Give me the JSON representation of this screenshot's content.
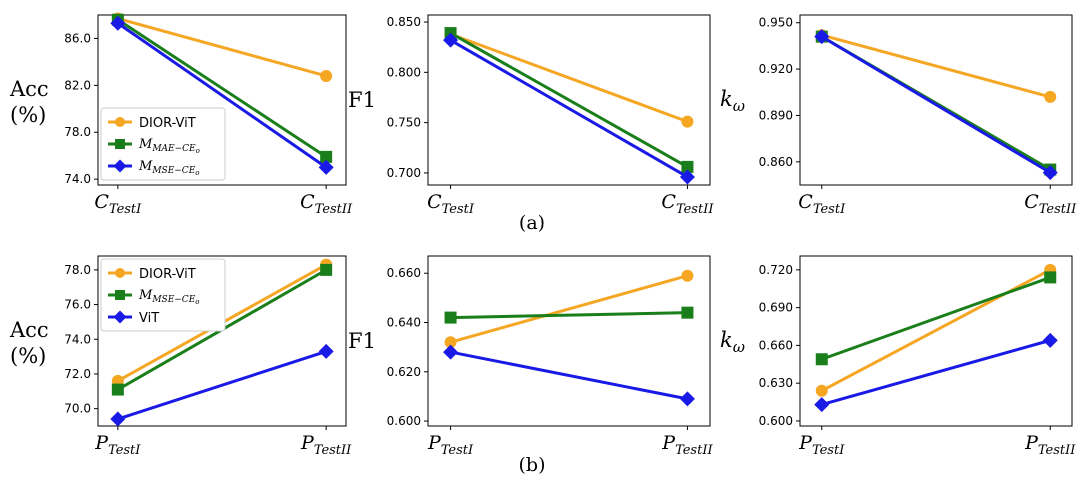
{
  "figure": {
    "caption_a": "(a)",
    "caption_b": "(b)"
  },
  "colors": {
    "orange": "#F5A623",
    "green": "#1A7F1A",
    "blue": "#1A1AE6"
  },
  "chart_data": [
    {
      "id": "a1",
      "type": "line",
      "ylabel": [
        "Acc",
        "(%)"
      ],
      "categories": [
        [
          "C",
          "TestI"
        ],
        [
          "C",
          "TestII"
        ]
      ],
      "ylim": [
        73.5,
        88.0
      ],
      "yticks": [
        74.0,
        78.0,
        82.0,
        86.0
      ],
      "tick_decimals": 1,
      "legend": "left-middle",
      "series": [
        {
          "name": "DIOR-ViT",
          "color": "orange",
          "marker": "circle",
          "values": [
            87.7,
            82.8
          ]
        },
        {
          "name": [
            "M",
            "MAE−CE",
            "o"
          ],
          "color": "green",
          "marker": "square",
          "values": [
            87.6,
            75.9
          ]
        },
        {
          "name": [
            "M",
            "MSE−CE",
            "o"
          ],
          "color": "blue",
          "marker": "diamond",
          "values": [
            87.3,
            75.0
          ]
        }
      ]
    },
    {
      "id": "a2",
      "type": "line",
      "ylabel": [
        "F1"
      ],
      "categories": [
        [
          "C",
          "TestI"
        ],
        [
          "C",
          "TestII"
        ]
      ],
      "ylim": [
        0.688,
        0.857
      ],
      "yticks": [
        0.7,
        0.75,
        0.8,
        0.85
      ],
      "tick_decimals": 3,
      "series": [
        {
          "color": "orange",
          "marker": "circle",
          "values": [
            0.838,
            0.751
          ]
        },
        {
          "color": "green",
          "marker": "square",
          "values": [
            0.839,
            0.706
          ]
        },
        {
          "color": "blue",
          "marker": "diamond",
          "values": [
            0.832,
            0.696
          ]
        }
      ]
    },
    {
      "id": "a3",
      "type": "line",
      "ylabel": [
        "k",
        "ω"
      ],
      "ylabel_italic": true,
      "categories": [
        [
          "C",
          "TestI"
        ],
        [
          "C",
          "TestII"
        ]
      ],
      "ylim": [
        0.845,
        0.955
      ],
      "yticks": [
        0.86,
        0.89,
        0.92,
        0.95
      ],
      "tick_decimals": 3,
      "series": [
        {
          "color": "orange",
          "marker": "circle",
          "values": [
            0.942,
            0.902
          ]
        },
        {
          "color": "green",
          "marker": "square",
          "values": [
            0.941,
            0.855
          ]
        },
        {
          "color": "blue",
          "marker": "diamond",
          "values": [
            0.941,
            0.853
          ]
        }
      ]
    },
    {
      "id": "b1",
      "type": "line",
      "ylabel": [
        "Acc",
        "(%)"
      ],
      "categories": [
        [
          "P",
          "TestI"
        ],
        [
          "P",
          "TestII"
        ]
      ],
      "ylim": [
        69.0,
        78.8
      ],
      "yticks": [
        70.0,
        72.0,
        74.0,
        76.0,
        78.0
      ],
      "tick_decimals": 1,
      "legend": "top-left",
      "series": [
        {
          "name": "DIOR-ViT",
          "color": "orange",
          "marker": "circle",
          "values": [
            71.6,
            78.3
          ]
        },
        {
          "name": [
            "M",
            "MSE−CE",
            "o"
          ],
          "color": "green",
          "marker": "square",
          "values": [
            71.1,
            78.0
          ]
        },
        {
          "name": "ViT",
          "color": "blue",
          "marker": "diamond",
          "values": [
            69.4,
            73.3
          ]
        }
      ]
    },
    {
      "id": "b2",
      "type": "line",
      "ylabel": [
        "F1"
      ],
      "categories": [
        [
          "P",
          "TestI"
        ],
        [
          "P",
          "TestII"
        ]
      ],
      "ylim": [
        0.598,
        0.667
      ],
      "yticks": [
        0.6,
        0.62,
        0.64,
        0.66
      ],
      "tick_decimals": 3,
      "series": [
        {
          "color": "orange",
          "marker": "circle",
          "values": [
            0.632,
            0.659
          ]
        },
        {
          "color": "green",
          "marker": "square",
          "values": [
            0.642,
            0.644
          ]
        },
        {
          "color": "blue",
          "marker": "diamond",
          "values": [
            0.628,
            0.609
          ]
        }
      ]
    },
    {
      "id": "b3",
      "type": "line",
      "ylabel": [
        "k",
        "ω"
      ],
      "ylabel_italic": true,
      "categories": [
        [
          "P",
          "TestI"
        ],
        [
          "P",
          "TestII"
        ]
      ],
      "ylim": [
        0.596,
        0.731
      ],
      "yticks": [
        0.6,
        0.63,
        0.66,
        0.69,
        0.72
      ],
      "tick_decimals": 3,
      "series": [
        {
          "color": "orange",
          "marker": "circle",
          "values": [
            0.624,
            0.72
          ]
        },
        {
          "color": "green",
          "marker": "square",
          "values": [
            0.649,
            0.714
          ]
        },
        {
          "color": "blue",
          "marker": "diamond",
          "values": [
            0.613,
            0.664
          ]
        }
      ]
    }
  ]
}
